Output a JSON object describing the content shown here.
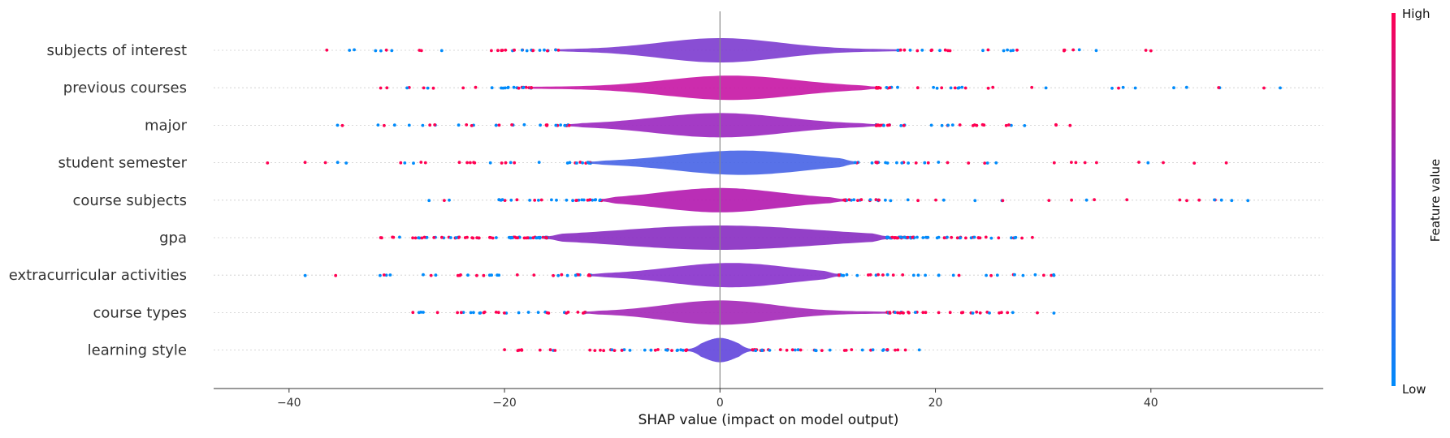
{
  "chart_data": {
    "type": "violin-scatter",
    "title": "",
    "xlabel": "SHAP value (impact on model output)",
    "ylabel": "",
    "xlim": [
      -47,
      56
    ],
    "xticks": [
      -40,
      -20,
      0,
      20,
      40
    ],
    "xtick_labels": [
      "−40",
      "−20",
      "0",
      "20",
      "40"
    ],
    "zero_line": true,
    "features": [
      {
        "name": "subjects of interest",
        "min": -36.5,
        "max": 40,
        "core_low": -15,
        "core_high": 16.5,
        "peak": 0,
        "spread": 5.5,
        "peak_color": "#7f3fd0",
        "points": 60
      },
      {
        "name": "previous courses",
        "min": -31.5,
        "max": 52,
        "core_low": -17.5,
        "core_high": 14.5,
        "peak": 1,
        "spread": 6,
        "peak_color": "#c81aa6",
        "points": 65
      },
      {
        "name": "major",
        "min": -35.5,
        "max": 32.5,
        "core_low": -14,
        "core_high": 14.5,
        "peak": 0,
        "spread": 6,
        "peak_color": "#9c2ac0",
        "points": 70
      },
      {
        "name": "student semester",
        "min": -42,
        "max": 47,
        "core_low": -12,
        "core_high": 12.5,
        "peak": 2,
        "spread": 6,
        "peak_color": "#4a66e6",
        "points": 70
      },
      {
        "name": "course subjects",
        "min": -27,
        "max": 49,
        "core_low": -11,
        "core_high": 11.5,
        "peak": 0,
        "spread": 5.5,
        "peak_color": "#b41cb0",
        "points": 75
      },
      {
        "name": "gpa",
        "min": -31.5,
        "max": 29,
        "core_low": -16,
        "core_high": 15.5,
        "peak": 0,
        "spread": 9,
        "peak_color": "#8a30c2",
        "points": 150
      },
      {
        "name": "extracurricular activities",
        "min": -38.5,
        "max": 31,
        "core_low": -12,
        "core_high": 11,
        "peak": 1,
        "spread": 5.5,
        "peak_color": "#8a34cc",
        "points": 70
      },
      {
        "name": "course types",
        "min": -28.5,
        "max": 31,
        "core_low": -12.5,
        "core_high": 15.5,
        "peak": 0,
        "spread": 5,
        "peak_color": "#a52ab8",
        "points": 70
      },
      {
        "name": "learning style",
        "min": -20,
        "max": 18.5,
        "core_low": -3,
        "core_high": 3,
        "peak": 0,
        "spread": 1.5,
        "peak_color": "#6448dc",
        "points": 80
      }
    ]
  },
  "colorbar": {
    "high_label": "High",
    "low_label": "Low",
    "title": "Feature value",
    "high_color": "#ff0052",
    "mid_color": "#7a38d8",
    "low_color": "#008bfb"
  }
}
